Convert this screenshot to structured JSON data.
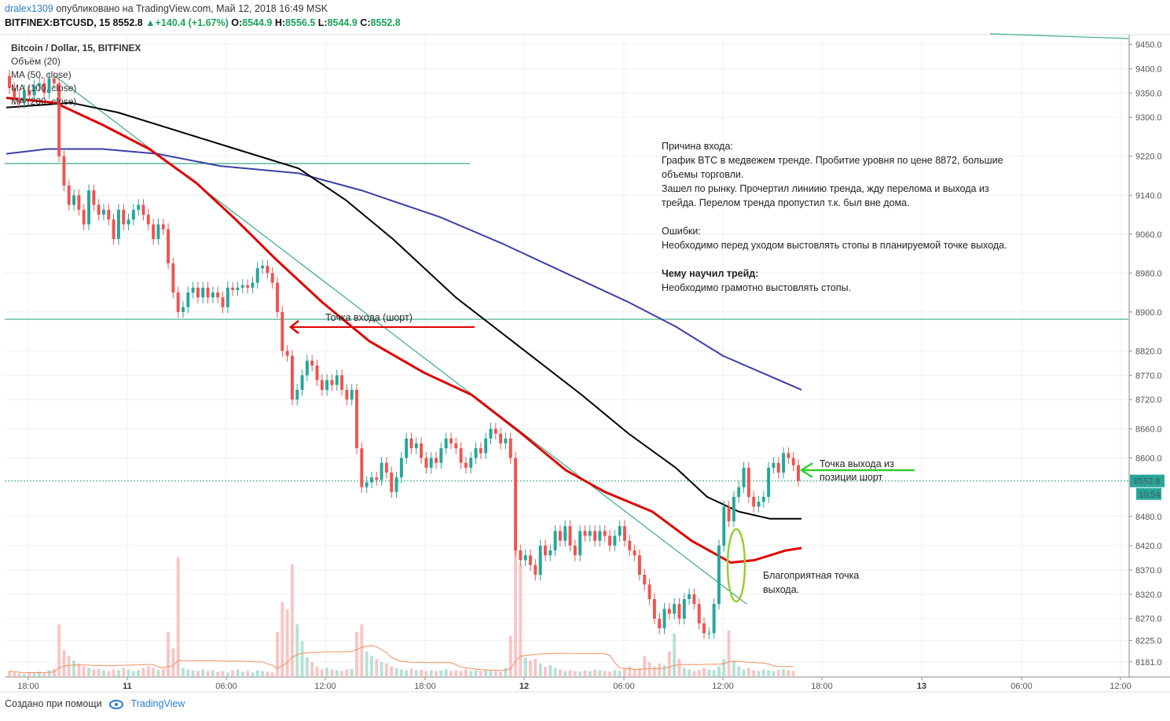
{
  "header": {
    "author": "dralex1309",
    "published": "опубликовано на TradingView.com, Май 12, 2018 16:49 MSK",
    "symbol": "BITFINEX:BTCUSD, 15",
    "last": "8552.8",
    "change_arrow": "▲",
    "change": "+140.4 (+1.67%)",
    "o_label": "O:",
    "o": "8544.9",
    "h_label": "H:",
    "h": "8556.5",
    "l_label": "L:",
    "l": "8544.9",
    "c_label": "C:",
    "c": "8552.8"
  },
  "legend": {
    "title": "Bitcoin / Dollar, 15, BITFINEX",
    "volume": "Объём (20)",
    "ma50": "MA (50, close)",
    "ma100": "MA (100, close)",
    "ma200": "MA (200, close)"
  },
  "notes": {
    "reason_title": "Причина входа:",
    "reason_1": "График BTC в медвежем тренде. Пробитие уровня по цене 8872, большие",
    "reason_2": "объемы торговли.",
    "reason_3": "Зашел по рынку. Прочертил линиию тренда, жду перелома и выхода из",
    "reason_4": "трейда. Перелом тренда пропустил т.к. был вне дома.",
    "errors_title": "Ошибки:",
    "errors_1": "Необходимо перед уходом выстовлять стопы в планируемой точке выхода.",
    "learned_title": "Чему научил трейд:",
    "learned_1": "Необходимо грамотно выстовлять стопы.",
    "entry": "Точка входа (шорт)",
    "exit_1": "Точка выхода из",
    "exit_2": "позиции шорт",
    "good_exit_1": "Благоприятная точка",
    "good_exit_2": "выхода."
  },
  "price_tag": {
    "value": "8552.8",
    "time": "10:54"
  },
  "footer": {
    "created": "Создано при помощи",
    "brand": "TradingView"
  },
  "colors": {
    "up": "#26a69a",
    "down": "#ef5350",
    "ma50": "#e00000",
    "ma100": "#000000",
    "ma200": "#3b3fa8",
    "level": "#3aa88c",
    "exit_arrow": "#33cc33",
    "ellipse": "#9acd32"
  },
  "chart_data": {
    "type": "candlestick",
    "title": "Bitcoin / Dollar, 15, BITFINEX",
    "y_axis_labels": [
      "9450.0",
      "9400.0",
      "9350.0",
      "9300.0",
      "9220.0",
      "9140.0",
      "9060.0",
      "8980.0",
      "8900.0",
      "8820.0",
      "8770.0",
      "8720.0",
      "8660.0",
      "8600.0",
      "8480.0",
      "8420.0",
      "8370.0",
      "8320.0",
      "8270.0",
      "8225.0",
      "8181.0"
    ],
    "ylim": [
      8150,
      9470
    ],
    "x_axis_labels": [
      "18:00",
      "11",
      "06:00",
      "12:00",
      "18:00",
      "12",
      "06:00",
      "12:00",
      "18:00",
      "13",
      "06:00",
      "12:00"
    ],
    "x_bold_labels": [
      "11",
      "12",
      "13"
    ],
    "price_series": [
      [
        9385,
        9360
      ],
      [
        9360,
        9340
      ],
      [
        9340,
        9330
      ],
      [
        9330,
        9355
      ],
      [
        9355,
        9345
      ],
      [
        9345,
        9365
      ],
      [
        9365,
        9370
      ],
      [
        9370,
        9350
      ],
      [
        9350,
        9380
      ],
      [
        9380,
        9370
      ],
      [
        9370,
        9220
      ],
      [
        9220,
        9160
      ],
      [
        9160,
        9120
      ],
      [
        9120,
        9140
      ],
      [
        9140,
        9110
      ],
      [
        9110,
        9080
      ],
      [
        9080,
        9150
      ],
      [
        9150,
        9120
      ],
      [
        9120,
        9100
      ],
      [
        9100,
        9110
      ],
      [
        9110,
        9090
      ],
      [
        9090,
        9050
      ],
      [
        9050,
        9110
      ],
      [
        9110,
        9080
      ],
      [
        9080,
        9090
      ],
      [
        9090,
        9110
      ],
      [
        9110,
        9120
      ],
      [
        9120,
        9100
      ],
      [
        9100,
        9080
      ],
      [
        9080,
        9050
      ],
      [
        9050,
        9080
      ],
      [
        9080,
        9070
      ],
      [
        9070,
        9000
      ],
      [
        9000,
        8940
      ],
      [
        8940,
        8900
      ],
      [
        8900,
        8910
      ],
      [
        8910,
        8940
      ],
      [
        8940,
        8950
      ],
      [
        8950,
        8930
      ],
      [
        8930,
        8950
      ],
      [
        8950,
        8930
      ],
      [
        8930,
        8940
      ],
      [
        8940,
        8930
      ],
      [
        8930,
        8910
      ],
      [
        8910,
        8950
      ],
      [
        8950,
        8945
      ],
      [
        8945,
        8950
      ],
      [
        8950,
        8955
      ],
      [
        8955,
        8950
      ],
      [
        8950,
        8960
      ],
      [
        8960,
        8990
      ],
      [
        8990,
        8995
      ],
      [
        8995,
        8980
      ],
      [
        8980,
        8960
      ],
      [
        8960,
        8900
      ],
      [
        8900,
        8820
      ],
      [
        8820,
        8810
      ],
      [
        8810,
        8720
      ],
      [
        8720,
        8740
      ],
      [
        8740,
        8770
      ],
      [
        8770,
        8800
      ],
      [
        8800,
        8790
      ],
      [
        8790,
        8760
      ],
      [
        8760,
        8740
      ],
      [
        8740,
        8760
      ],
      [
        8760,
        8750
      ],
      [
        8750,
        8770
      ],
      [
        8770,
        8740
      ],
      [
        8740,
        8720
      ],
      [
        8720,
        8740
      ],
      [
        8740,
        8620
      ],
      [
        8620,
        8540
      ],
      [
        8540,
        8550
      ],
      [
        8550,
        8560
      ],
      [
        8560,
        8555
      ],
      [
        8555,
        8590
      ],
      [
        8590,
        8570
      ],
      [
        8570,
        8530
      ],
      [
        8530,
        8560
      ],
      [
        8560,
        8600
      ],
      [
        8600,
        8640
      ],
      [
        8640,
        8620
      ],
      [
        8620,
        8630
      ],
      [
        8630,
        8600
      ],
      [
        8600,
        8580
      ],
      [
        8580,
        8600
      ],
      [
        8600,
        8590
      ],
      [
        8590,
        8620
      ],
      [
        8620,
        8640
      ],
      [
        8640,
        8630
      ],
      [
        8630,
        8620
      ],
      [
        8620,
        8590
      ],
      [
        8590,
        8580
      ],
      [
        8580,
        8600
      ],
      [
        8600,
        8620
      ],
      [
        8620,
        8610
      ],
      [
        8610,
        8640
      ],
      [
        8640,
        8660
      ],
      [
        8660,
        8650
      ],
      [
        8650,
        8630
      ],
      [
        8630,
        8640
      ],
      [
        8640,
        8600
      ],
      [
        8600,
        8410
      ],
      [
        8410,
        8390
      ],
      [
        8390,
        8400
      ],
      [
        8400,
        8380
      ],
      [
        8380,
        8360
      ],
      [
        8360,
        8420
      ],
      [
        8420,
        8400
      ],
      [
        8400,
        8410
      ],
      [
        8410,
        8450
      ],
      [
        8450,
        8430
      ],
      [
        8430,
        8460
      ],
      [
        8460,
        8420
      ],
      [
        8420,
        8400
      ],
      [
        8400,
        8450
      ],
      [
        8450,
        8440
      ],
      [
        8440,
        8450
      ],
      [
        8450,
        8430
      ],
      [
        8430,
        8450
      ],
      [
        8450,
        8440
      ],
      [
        8440,
        8420
      ],
      [
        8420,
        8440
      ],
      [
        8440,
        8460
      ],
      [
        8460,
        8430
      ],
      [
        8430,
        8410
      ],
      [
        8410,
        8400
      ],
      [
        8400,
        8360
      ],
      [
        8360,
        8340
      ],
      [
        8340,
        8310
      ],
      [
        8310,
        8270
      ],
      [
        8270,
        8250
      ],
      [
        8250,
        8290
      ],
      [
        8290,
        8280
      ],
      [
        8280,
        8300
      ],
      [
        8300,
        8270
      ],
      [
        8270,
        8310
      ],
      [
        8310,
        8320
      ],
      [
        8320,
        8300
      ],
      [
        8300,
        8260
      ],
      [
        8260,
        8240
      ],
      [
        8240,
        8240
      ],
      [
        8240,
        8300
      ],
      [
        8300,
        8420
      ],
      [
        8420,
        8500
      ],
      [
        8500,
        8470
      ],
      [
        8470,
        8520
      ],
      [
        8520,
        8540
      ],
      [
        8540,
        8580
      ],
      [
        8580,
        8520
      ],
      [
        8520,
        8500
      ],
      [
        8500,
        8510
      ],
      [
        8510,
        8520
      ],
      [
        8520,
        8580
      ],
      [
        8580,
        8590
      ],
      [
        8590,
        8570
      ],
      [
        8570,
        8610
      ],
      [
        8610,
        8600
      ],
      [
        8600,
        8585
      ],
      [
        8585,
        8552.8
      ]
    ],
    "volume_series": [
      8,
      6,
      5,
      4,
      6,
      5,
      7,
      6,
      9,
      11,
      70,
      36,
      28,
      22,
      18,
      14,
      12,
      10,
      11,
      9,
      8,
      10,
      9,
      12,
      10,
      8,
      9,
      12,
      14,
      12,
      10,
      11,
      60,
      38,
      160,
      12,
      10,
      9,
      8,
      10,
      8,
      9,
      7,
      8,
      6,
      9,
      10,
      7,
      8,
      6,
      9,
      8,
      7,
      6,
      60,
      100,
      90,
      150,
      70,
      48,
      26,
      20,
      14,
      10,
      12,
      10,
      9,
      8,
      10,
      11,
      60,
      70,
      34,
      28,
      24,
      20,
      18,
      14,
      12,
      10,
      9,
      11,
      9,
      10,
      8,
      9,
      8,
      9,
      10,
      8,
      9,
      8,
      10,
      8,
      9,
      8,
      10,
      9,
      8,
      7,
      12,
      55,
      200,
      150,
      26,
      22,
      24,
      18,
      14,
      16,
      12,
      10,
      8,
      9,
      8,
      7,
      9,
      8,
      10,
      9,
      8,
      7,
      9,
      8,
      12,
      14,
      10,
      12,
      28,
      20,
      14,
      18,
      16,
      34,
      58,
      24,
      12,
      10,
      8,
      9,
      12,
      10,
      9,
      14,
      24,
      62,
      22,
      14,
      10,
      12,
      9,
      8,
      10,
      9,
      8,
      9,
      10,
      9,
      8
    ],
    "ma50": [
      [
        8,
        9340
      ],
      [
        70,
        9330
      ],
      [
        130,
        9285
      ],
      [
        190,
        9235
      ],
      [
        250,
        9165
      ],
      [
        300,
        9090
      ],
      [
        350,
        9010
      ],
      [
        410,
        8920
      ],
      [
        470,
        8840
      ],
      [
        540,
        8775
      ],
      [
        600,
        8730
      ],
      [
        660,
        8655
      ],
      [
        720,
        8575
      ],
      [
        770,
        8530
      ],
      [
        830,
        8490
      ],
      [
        880,
        8430
      ],
      [
        930,
        8385
      ],
      [
        960,
        8390
      ],
      [
        1000,
        8410
      ],
      [
        1020,
        8415
      ]
    ],
    "ma100": [
      [
        8,
        9320
      ],
      [
        90,
        9330
      ],
      [
        150,
        9310
      ],
      [
        220,
        9275
      ],
      [
        300,
        9235
      ],
      [
        380,
        9195
      ],
      [
        440,
        9130
      ],
      [
        500,
        9050
      ],
      [
        580,
        8930
      ],
      [
        660,
        8830
      ],
      [
        740,
        8730
      ],
      [
        800,
        8650
      ],
      [
        860,
        8580
      ],
      [
        900,
        8520
      ],
      [
        940,
        8490
      ],
      [
        980,
        8475
      ],
      [
        1020,
        8475
      ]
    ],
    "ma200": [
      [
        8,
        9225
      ],
      [
        60,
        9235
      ],
      [
        130,
        9235
      ],
      [
        200,
        9225
      ],
      [
        280,
        9200
      ],
      [
        380,
        9185
      ],
      [
        460,
        9150
      ],
      [
        560,
        9095
      ],
      [
        640,
        9040
      ],
      [
        720,
        8980
      ],
      [
        800,
        8920
      ],
      [
        860,
        8870
      ],
      [
        920,
        8810
      ],
      [
        970,
        8775
      ],
      [
        1020,
        8740
      ]
    ],
    "levels": [
      9205,
      8885,
      8552.8
    ],
    "trendline": [
      [
        70,
        9385
      ],
      [
        950,
        8300
      ]
    ]
  }
}
